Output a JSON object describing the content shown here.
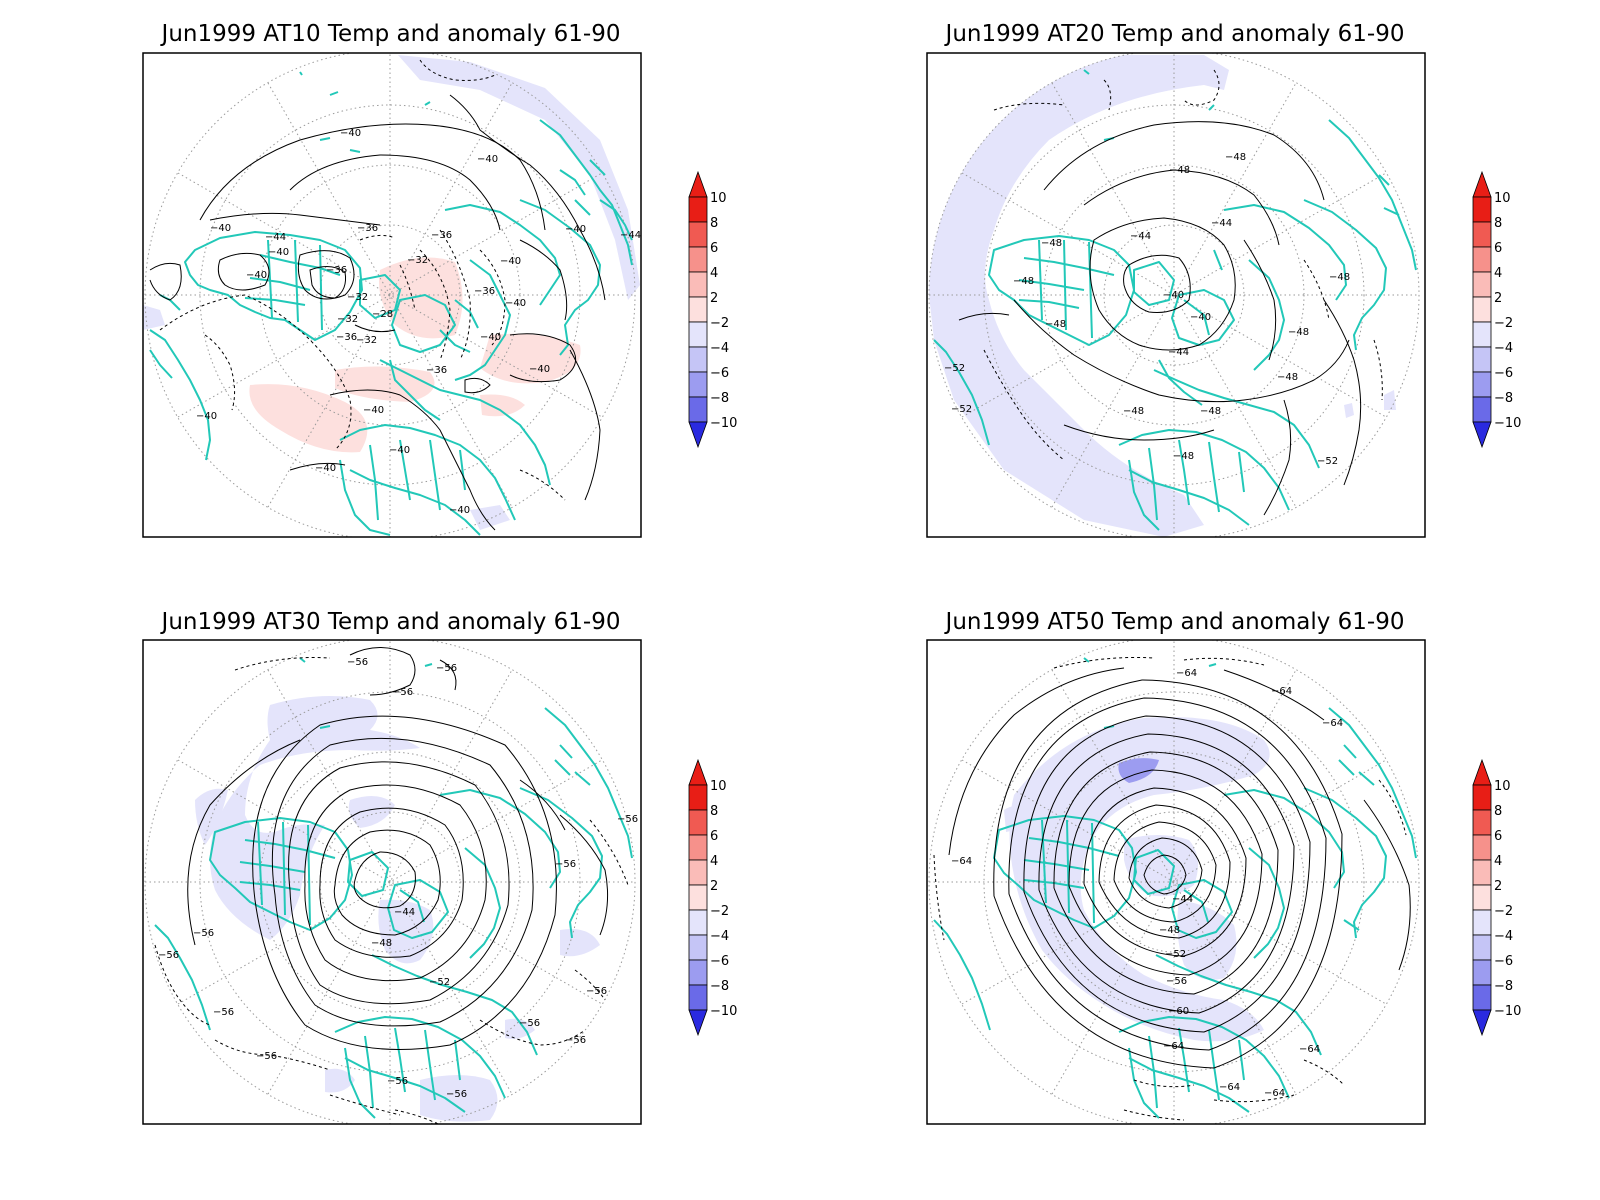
{
  "palette": {
    "pos": [
      "#fde0de",
      "#fabcb8",
      "#f6918b",
      "#f05a52",
      "#e81e16"
    ],
    "neg": [
      "#e4e4fb",
      "#c5c5f6",
      "#9c9cf0",
      "#6a6ae8",
      "#2a2ae0"
    ],
    "coast": "#22c8b8",
    "contour": "#000000"
  },
  "colorbar": {
    "ticks": [
      "10",
      "8",
      "6",
      "4",
      "2",
      "−2",
      "−4",
      "−6",
      "−8",
      "−10"
    ]
  },
  "panels": [
    {
      "title": "Jun1999 AT10 Temp and anomaly 61-90",
      "labels": [
        "−40",
        "−40",
        "−40",
        "−44",
        "−40",
        "−40",
        "−36",
        "−36",
        "−36",
        "−32",
        "−32",
        "−28",
        "−32",
        "−36",
        "−40",
        "−36",
        "−32",
        "−40",
        "−40",
        "−44",
        "−40",
        "−40",
        "−40",
        "−40",
        "−40",
        "−40",
        "−40",
        "−36"
      ]
    },
    {
      "title": "Jun1999 AT20 Temp and anomaly 61-90",
      "labels": [
        "−48",
        "−48",
        "−44",
        "−44",
        "−48",
        "−48",
        "−48",
        "−40",
        "−40",
        "−44",
        "−48",
        "−48",
        "−48",
        "−52",
        "−52",
        "−48",
        "−48",
        "−48",
        "−52"
      ]
    },
    {
      "title": "Jun1999 AT30 Temp and anomaly 61-90",
      "labels": [
        "−56",
        "−56",
        "−56",
        "−56",
        "−56",
        "−44",
        "−48",
        "−52",
        "−56",
        "−56",
        "−56",
        "−56",
        "−56",
        "−56",
        "−56",
        "−56",
        "−56"
      ]
    },
    {
      "title": "Jun1999 AT50 Temp and anomaly 61-90",
      "labels": [
        "−64",
        "−64",
        "−64",
        "−64",
        "−44",
        "−48",
        "−52",
        "−56",
        "−60",
        "−64",
        "−64",
        "−64",
        "−64"
      ]
    }
  ]
}
